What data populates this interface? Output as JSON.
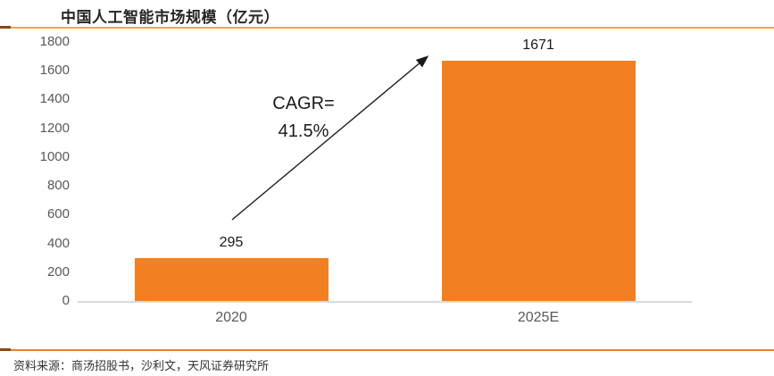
{
  "header": {
    "title": "中国人工智能市场规模（亿元）"
  },
  "annotation": {
    "line1": "CAGR=",
    "line2": "41.5%"
  },
  "footer": {
    "source": "资料来源：商汤招股书，沙利文，天风证券研究所"
  },
  "colors": {
    "bar": "#F28022",
    "top_rule": "#F5A353",
    "bottom_rule": "#ED7D31",
    "rule_accent": "#8C4A10",
    "axis_text": "#595959",
    "value_text": "#1a1a1a",
    "baseline": "#DBDBDB"
  },
  "chart_data": {
    "type": "bar",
    "title": "中国人工智能市场规模（亿元）",
    "categories": [
      "2020",
      "2025E"
    ],
    "values": [
      295,
      1671
    ],
    "value_labels": [
      "295",
      "1671"
    ],
    "xlabel": "",
    "ylabel": "",
    "ylim": [
      0,
      1800
    ],
    "ytick_step": 200,
    "yticks": [
      0,
      200,
      400,
      600,
      800,
      1000,
      1200,
      1400,
      1600,
      1800
    ],
    "grid": false,
    "legend": false,
    "bar_color": "#F28022",
    "annotation": "CAGR= 41.5%"
  }
}
